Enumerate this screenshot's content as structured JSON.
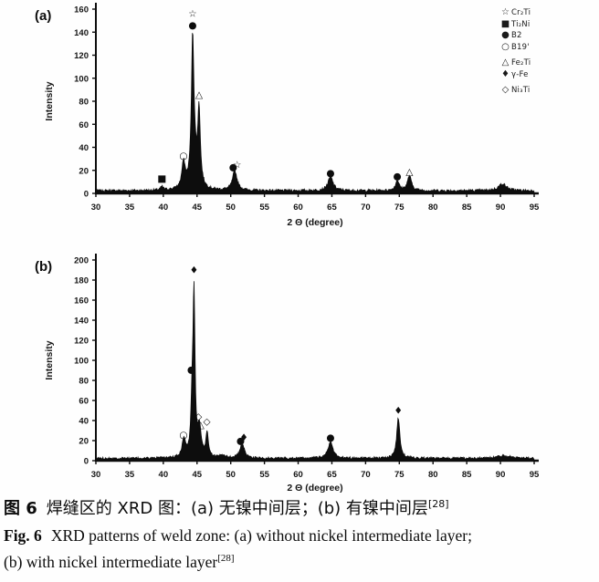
{
  "colors": {
    "ink": "#0d0d0d",
    "background": "#fefefe"
  },
  "chart_data": [
    {
      "id": "a",
      "type": "line",
      "panel_label": "(a)",
      "xlabel": "2 Θ (degree)",
      "ylabel": "Intensity",
      "xlim": [
        30,
        95
      ],
      "ylim": [
        0,
        160
      ],
      "xticks": [
        30,
        35,
        40,
        45,
        50,
        55,
        60,
        65,
        70,
        75,
        80,
        85,
        90,
        95
      ],
      "yticks": [
        0,
        20,
        40,
        60,
        80,
        100,
        120,
        140,
        160
      ],
      "noise_base": 1.2,
      "noise_amp": 2.2,
      "seed": 7,
      "peaks": [
        {
          "c": 39.8,
          "h": 3,
          "w": 0.25
        },
        {
          "c": 43.0,
          "h": 22,
          "w": 0.3
        },
        {
          "c": 44.35,
          "h": 120,
          "w": 0.22
        },
        {
          "c": 44.6,
          "h": 20,
          "w": 0.5
        },
        {
          "c": 45.3,
          "h": 65,
          "w": 0.22
        },
        {
          "c": 50.6,
          "h": 17,
          "w": 0.4
        },
        {
          "c": 64.8,
          "h": 12,
          "w": 0.45
        },
        {
          "c": 74.7,
          "h": 9,
          "w": 0.3
        },
        {
          "c": 76.5,
          "h": 13,
          "w": 0.35
        },
        {
          "c": 90.3,
          "h": 6,
          "w": 0.7
        }
      ],
      "markers": [
        {
          "symbol": "■",
          "x": 39.8,
          "y": 13
        },
        {
          "symbol": "○",
          "x": 43.0,
          "y": 33
        },
        {
          "symbol": "☆",
          "x": 44.35,
          "y": 156
        },
        {
          "symbol": "●",
          "x": 44.35,
          "y": 146
        },
        {
          "symbol": "△",
          "x": 45.3,
          "y": 86
        },
        {
          "symbol": "●",
          "x": 50.35,
          "y": 23
        },
        {
          "symbol": "☆",
          "x": 50.95,
          "y": 25
        },
        {
          "symbol": "●",
          "x": 64.8,
          "y": 18
        },
        {
          "symbol": "●",
          "x": 74.7,
          "y": 15
        },
        {
          "symbol": "△",
          "x": 76.5,
          "y": 19
        }
      ],
      "legend": [
        {
          "symbol": "☆",
          "label": "Cr₂Ti",
          "gap_before": false
        },
        {
          "symbol": "■",
          "label": "Ti₂Ni",
          "gap_before": false
        },
        {
          "symbol": "●",
          "label": "B2",
          "gap_before": false
        },
        {
          "symbol": "○",
          "label": "B19'",
          "gap_before": false
        },
        {
          "symbol": "△",
          "label": "Fe₂Ti",
          "gap_before": true
        },
        {
          "symbol": "♦",
          "label": "γ-Fe",
          "gap_before": false
        },
        {
          "symbol": "◇",
          "label": "Ni₃Ti",
          "gap_before": true
        }
      ]
    },
    {
      "id": "b",
      "type": "line",
      "panel_label": "(b)",
      "xlabel": "2 Θ (degree)",
      "ylabel": "Intensity",
      "xlim": [
        30,
        95
      ],
      "ylim": [
        0,
        200
      ],
      "xticks": [
        30,
        35,
        40,
        45,
        50,
        55,
        60,
        65,
        70,
        75,
        80,
        85,
        90,
        95
      ],
      "yticks": [
        0,
        20,
        40,
        60,
        80,
        100,
        120,
        140,
        160,
        180,
        200
      ],
      "noise_base": 1.2,
      "noise_amp": 2.2,
      "seed": 31,
      "peaks": [
        {
          "c": 43.05,
          "h": 18,
          "w": 0.3
        },
        {
          "c": 44.25,
          "h": 45,
          "w": 0.18
        },
        {
          "c": 44.55,
          "h": 160,
          "w": 0.18
        },
        {
          "c": 45.35,
          "h": 28,
          "w": 0.3
        },
        {
          "c": 46.5,
          "h": 24,
          "w": 0.22
        },
        {
          "c": 48.8,
          "h": 3,
          "w": 0.5
        },
        {
          "c": 51.7,
          "h": 14,
          "w": 0.4
        },
        {
          "c": 64.8,
          "h": 16,
          "w": 0.45
        },
        {
          "c": 74.85,
          "h": 40,
          "w": 0.28
        },
        {
          "c": 90.5,
          "h": 2.5,
          "w": 1.2
        }
      ],
      "markers": [
        {
          "symbol": "○",
          "x": 43.0,
          "y": 26
        },
        {
          "symbol": "●",
          "x": 44.15,
          "y": 91
        },
        {
          "symbol": "♦",
          "x": 44.55,
          "y": 190
        },
        {
          "symbol": "◇",
          "x": 45.2,
          "y": 44
        },
        {
          "symbol": "△",
          "x": 45.55,
          "y": 36
        },
        {
          "symbol": "◇",
          "x": 46.45,
          "y": 39
        },
        {
          "symbol": "●",
          "x": 51.45,
          "y": 20
        },
        {
          "symbol": "♦",
          "x": 51.95,
          "y": 23
        },
        {
          "symbol": "●",
          "x": 64.8,
          "y": 23
        },
        {
          "symbol": "♦",
          "x": 74.85,
          "y": 50
        }
      ],
      "legend": []
    }
  ],
  "caption": {
    "zh": {
      "label": "图 6",
      "text": "焊缝区的 XRD 图：(a) 无镍中间层；(b) 有镍中间层",
      "ref": "[28]"
    },
    "en": {
      "label": "Fig. 6",
      "line1": "XRD patterns of weld zone: (a) without nickel intermediate layer;",
      "line2": "(b) with nickel intermediate layer",
      "ref": "[28]"
    }
  }
}
